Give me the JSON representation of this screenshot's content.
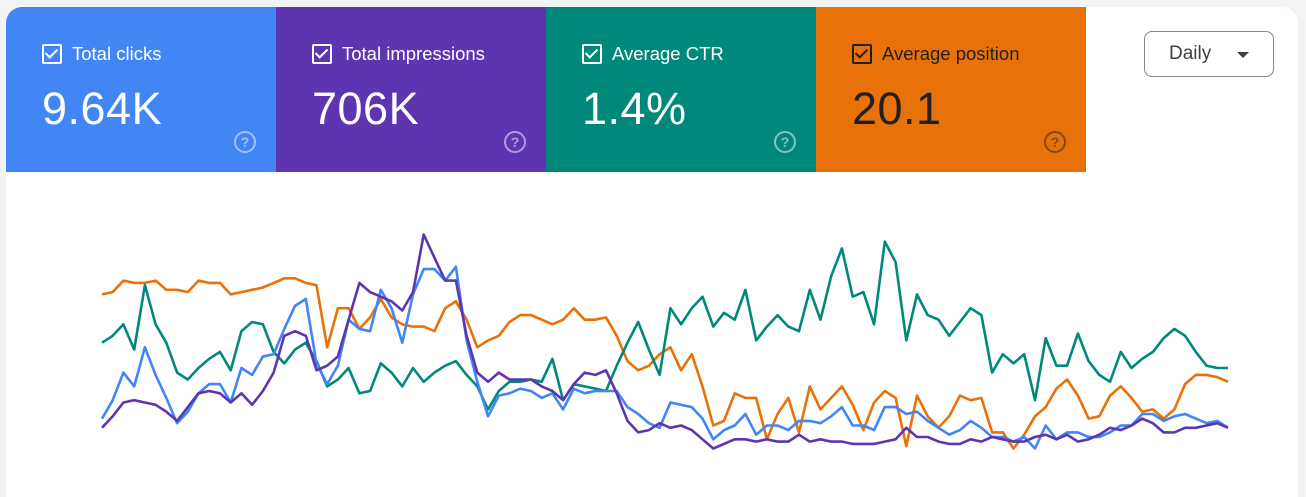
{
  "metrics": [
    {
      "label": "Total clicks",
      "value": "9.64K",
      "checked": true,
      "color": "#4285f4",
      "text_color": "#ffffff"
    },
    {
      "label": "Total impressions",
      "value": "706K",
      "checked": true,
      "color": "#5e35b1",
      "text_color": "#ffffff"
    },
    {
      "label": "Average CTR",
      "value": "1.4%",
      "checked": true,
      "color": "#00897b",
      "text_color": "#ffffff"
    },
    {
      "label": "Average position",
      "value": "20.1",
      "checked": true,
      "color": "#e8710a",
      "text_color": "#202124"
    }
  ],
  "help_icon": "?",
  "granularity": {
    "selected": "Daily"
  },
  "chart_data": {
    "type": "line",
    "title": "",
    "xlabel": "",
    "ylabel": "",
    "ylim": [
      0,
      100
    ],
    "grid": false,
    "legend": "none",
    "note_scale": "relative",
    "series": [
      {
        "metric": "Average position",
        "color": "#e8710a",
        "values": [
          72,
          73,
          78,
          77,
          77,
          78,
          74,
          74,
          73,
          78,
          77,
          77,
          72,
          73,
          74,
          75,
          77,
          79,
          79,
          77,
          76,
          49,
          66,
          66,
          57,
          62,
          70,
          62,
          59,
          58,
          58,
          56,
          66,
          69,
          61,
          49,
          52,
          54,
          60,
          63,
          63,
          61,
          59,
          61,
          66,
          61,
          61,
          62,
          54,
          43,
          39,
          41,
          46,
          49,
          39,
          46,
          32,
          15,
          17,
          29,
          27,
          27,
          9,
          20,
          27,
          12,
          32,
          22,
          27,
          32,
          24,
          13,
          25,
          30,
          27,
          6,
          28,
          19,
          14,
          19,
          28,
          26,
          27,
          12,
          12,
          5,
          11,
          19,
          23,
          31,
          35,
          28,
          18,
          19,
          28,
          32,
          27,
          21,
          22,
          18,
          22,
          33,
          37,
          37,
          36,
          34
        ]
      },
      {
        "metric": "Average CTR",
        "color": "#00897b",
        "values": [
          51,
          54,
          59,
          48,
          76,
          59,
          51,
          38,
          35,
          40,
          44,
          47,
          39,
          56,
          60,
          59,
          47,
          42,
          48,
          51,
          43,
          32,
          35,
          40,
          29,
          30,
          42,
          38,
          32,
          40,
          34,
          38,
          41,
          43,
          37,
          32,
          22,
          30,
          34,
          34,
          35,
          34,
          44,
          26,
          33,
          32,
          31,
          30,
          41,
          51,
          60,
          48,
          37,
          66,
          59,
          66,
          71,
          58,
          64,
          61,
          74,
          52,
          58,
          63,
          58,
          56,
          74,
          61,
          80,
          92,
          71,
          73,
          59,
          95,
          86,
          52,
          72,
          63,
          61,
          54,
          60,
          66,
          63,
          38,
          46,
          42,
          46,
          26,
          53,
          41,
          41,
          55,
          43,
          37,
          34,
          47,
          40,
          44,
          47,
          53,
          57,
          54,
          47,
          41,
          40,
          40
        ]
      },
      {
        "metric": "Total clicks",
        "color": "#4285f4",
        "values": [
          18,
          26,
          38,
          32,
          49,
          37,
          27,
          16,
          21,
          29,
          33,
          33,
          25,
          40,
          37,
          45,
          46,
          57,
          67,
          70,
          42,
          33,
          41,
          61,
          57,
          56,
          74,
          66,
          51,
          72,
          83,
          83,
          78,
          84,
          52,
          34,
          19,
          28,
          29,
          31,
          30,
          27,
          29,
          22,
          31,
          29,
          30,
          30,
          30,
          23,
          20,
          16,
          14,
          25,
          24,
          23,
          18,
          9,
          13,
          15,
          20,
          11,
          15,
          15,
          13,
          17,
          17,
          16,
          19,
          23,
          15,
          15,
          13,
          23,
          23,
          20,
          21,
          17,
          14,
          11,
          13,
          17,
          14,
          10,
          10,
          8,
          10,
          5,
          15,
          9,
          12,
          12,
          10,
          10,
          12,
          15,
          15,
          20,
          20,
          17,
          19,
          20,
          18,
          16,
          17,
          14
        ]
      },
      {
        "metric": "Total impressions",
        "color": "#5e35b1",
        "values": [
          14,
          19,
          25,
          26,
          25,
          24,
          21,
          17,
          23,
          29,
          30,
          29,
          25,
          29,
          24,
          30,
          38,
          54,
          56,
          54,
          39,
          41,
          45,
          61,
          77,
          73,
          71,
          69,
          65,
          73,
          98,
          88,
          78,
          78,
          54,
          38,
          34,
          38,
          35,
          35,
          35,
          32,
          30,
          26,
          33,
          38,
          37,
          39,
          29,
          17,
          12,
          13,
          16,
          14,
          15,
          13,
          9,
          5,
          7,
          9,
          9,
          8,
          9,
          8,
          8,
          11,
          8,
          9,
          8,
          8,
          7,
          7,
          7,
          8,
          9,
          14,
          10,
          10,
          8,
          7,
          7,
          9,
          8,
          10,
          9,
          8,
          8,
          10,
          11,
          9,
          11,
          8,
          9,
          11,
          14,
          13,
          15,
          18,
          16,
          12,
          12,
          14,
          14,
          15,
          16,
          14
        ]
      }
    ]
  }
}
